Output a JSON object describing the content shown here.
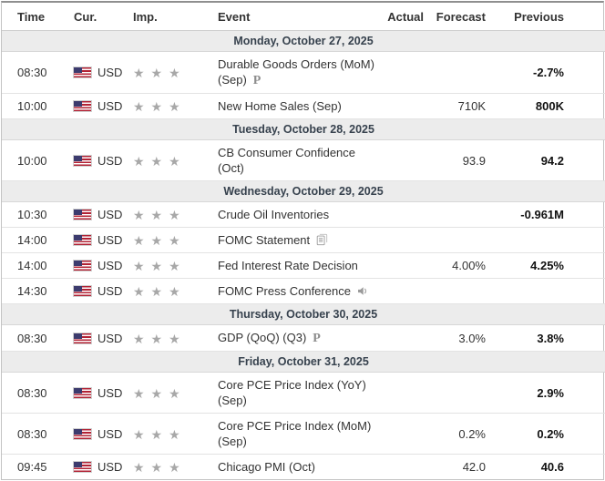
{
  "table": {
    "columns": [
      {
        "key": "time",
        "label": "Time"
      },
      {
        "key": "cur",
        "label": "Cur."
      },
      {
        "key": "imp",
        "label": "Imp."
      },
      {
        "key": "event",
        "label": "Event"
      },
      {
        "key": "actual",
        "label": "Actual"
      },
      {
        "key": "forecast",
        "label": "Forecast"
      },
      {
        "key": "previous",
        "label": "Previous"
      }
    ],
    "days": [
      {
        "date": "Monday, October 27, 2025",
        "events": [
          {
            "time": "08:30",
            "currency": "USD",
            "flag": "us-flag-icon",
            "importance": 3,
            "event": "Durable Goods Orders (MoM) (Sep)",
            "suffix_icon": "preliminary",
            "actual": "",
            "forecast": "",
            "previous": "-2.7%"
          },
          {
            "time": "10:00",
            "currency": "USD",
            "flag": "us-flag-icon",
            "importance": 3,
            "event": "New Home Sales (Sep)",
            "suffix_icon": null,
            "actual": "",
            "forecast": "710K",
            "previous": "800K"
          }
        ]
      },
      {
        "date": "Tuesday, October 28, 2025",
        "events": [
          {
            "time": "10:00",
            "currency": "USD",
            "flag": "us-flag-icon",
            "importance": 3,
            "event": "CB Consumer Confidence (Oct)",
            "suffix_icon": null,
            "actual": "",
            "forecast": "93.9",
            "previous": "94.2"
          }
        ]
      },
      {
        "date": "Wednesday, October 29, 2025",
        "events": [
          {
            "time": "10:30",
            "currency": "USD",
            "flag": "us-flag-icon",
            "importance": 3,
            "event": "Crude Oil Inventories",
            "suffix_icon": null,
            "actual": "",
            "forecast": "",
            "previous": "-0.961M"
          },
          {
            "time": "14:00",
            "currency": "USD",
            "flag": "us-flag-icon",
            "importance": 3,
            "event": "FOMC Statement",
            "suffix_icon": "report",
            "actual": "",
            "forecast": "",
            "previous": ""
          },
          {
            "time": "14:00",
            "currency": "USD",
            "flag": "us-flag-icon",
            "importance": 3,
            "event": "Fed Interest Rate Decision",
            "suffix_icon": null,
            "actual": "",
            "forecast": "4.00%",
            "previous": "4.25%"
          },
          {
            "time": "14:30",
            "currency": "USD",
            "flag": "us-flag-icon",
            "importance": 3,
            "event": "FOMC Press Conference",
            "suffix_icon": "speaker",
            "actual": "",
            "forecast": "",
            "previous": ""
          }
        ]
      },
      {
        "date": "Thursday, October 30, 2025",
        "events": [
          {
            "time": "08:30",
            "currency": "USD",
            "flag": "us-flag-icon",
            "importance": 3,
            "event": "GDP (QoQ) (Q3)",
            "suffix_icon": "preliminary",
            "actual": "",
            "forecast": "3.0%",
            "previous": "3.8%"
          }
        ]
      },
      {
        "date": "Friday, October 31, 2025",
        "events": [
          {
            "time": "08:30",
            "currency": "USD",
            "flag": "us-flag-icon",
            "importance": 3,
            "event": "Core PCE Price Index (YoY) (Sep)",
            "suffix_icon": null,
            "actual": "",
            "forecast": "",
            "previous": "2.9%"
          },
          {
            "time": "08:30",
            "currency": "USD",
            "flag": "us-flag-icon",
            "importance": 3,
            "event": "Core PCE Price Index (MoM) (Sep)",
            "suffix_icon": null,
            "actual": "",
            "forecast": "0.2%",
            "previous": "0.2%"
          },
          {
            "time": "09:45",
            "currency": "USD",
            "flag": "us-flag-icon",
            "importance": 3,
            "event": "Chicago PMI (Oct)",
            "suffix_icon": null,
            "actual": "",
            "forecast": "42.0",
            "previous": "40.6"
          }
        ]
      }
    ]
  },
  "icons": {
    "star_glyph": "★",
    "preliminary_glyph": "P",
    "report": "report-icon",
    "speaker": "speaker-icon"
  },
  "colors": {
    "header_text": "#333333",
    "day_row_bg": "#ececec",
    "day_row_text": "#37424e",
    "star_gray": "#a8a8a8",
    "row_border": "#e3e3e3",
    "outer_border": "#c3c3c3",
    "previous_text": "#111111",
    "flag_red": "#b22234",
    "flag_blue": "#3c3b6e"
  }
}
